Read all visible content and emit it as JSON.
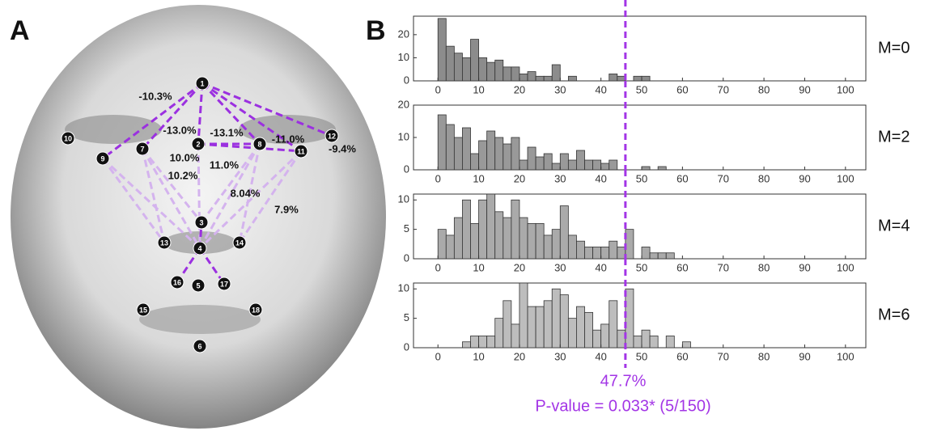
{
  "panel_a": {
    "label": "A",
    "landmarks": [
      "1",
      "2",
      "3",
      "4",
      "5",
      "6",
      "7",
      "8",
      "9",
      "10",
      "11",
      "12",
      "13",
      "14",
      "15",
      "16",
      "17",
      "18"
    ],
    "percent_labels": [
      "-10.3%",
      "-13.0%",
      "-13.1%",
      "-11.0%",
      "-9.4%",
      "10.0%",
      "11.0%",
      "10.2%",
      "8.04%",
      "7.9%"
    ]
  },
  "panel_b": {
    "label": "B",
    "annotation": {
      "percent": "47.7%",
      "p_value": "P-value = 0.033* (5/150)"
    },
    "annotation_color": "#a335e6"
  },
  "chart_data": [
    {
      "type": "histogram",
      "title": "M=0",
      "color": "#8c8c8c",
      "bins": [
        0,
        2,
        4,
        6,
        8,
        10,
        12,
        14,
        16,
        18,
        20,
        22,
        24,
        26,
        28,
        30,
        32,
        34,
        36,
        38,
        40,
        42,
        44,
        46,
        48,
        50,
        52,
        54,
        56,
        58,
        60,
        62,
        64
      ],
      "values": [
        27,
        15,
        12,
        10,
        18,
        10,
        8,
        9,
        6,
        6,
        3,
        4,
        2,
        2,
        7,
        0,
        2,
        0,
        0,
        0,
        0,
        3,
        2,
        0,
        2,
        2,
        0,
        0,
        0,
        0,
        0,
        0
      ],
      "xlim": [
        -6,
        105
      ],
      "xticks": [
        0,
        10,
        20,
        30,
        40,
        50,
        60,
        70,
        80,
        90,
        100
      ],
      "ylim": [
        0,
        28
      ],
      "yticks": [
        0,
        10,
        20
      ],
      "reference_line": 46,
      "reference_color": "#a335e6"
    },
    {
      "type": "histogram",
      "title": "M=2",
      "color": "#999999",
      "bins": [
        0,
        2,
        4,
        6,
        8,
        10,
        12,
        14,
        16,
        18,
        20,
        22,
        24,
        26,
        28,
        30,
        32,
        34,
        36,
        38,
        40,
        42,
        44,
        46,
        48,
        50,
        52,
        54,
        56,
        58,
        60,
        62,
        64
      ],
      "values": [
        17,
        14,
        10,
        13,
        5,
        9,
        12,
        10,
        8,
        10,
        3,
        7,
        4,
        5,
        2,
        5,
        3,
        6,
        3,
        3,
        2,
        3,
        0,
        0,
        0,
        1,
        0,
        1,
        0,
        0,
        0,
        0
      ],
      "xlim": [
        -6,
        105
      ],
      "xticks": [
        0,
        10,
        20,
        30,
        40,
        50,
        60,
        70,
        80,
        90,
        100
      ],
      "ylim": [
        0,
        20
      ],
      "yticks": [
        0,
        10,
        20
      ],
      "reference_line": 46,
      "reference_color": "#a335e6"
    },
    {
      "type": "histogram",
      "title": "M=4",
      "color": "#aaaaaa",
      "bins": [
        0,
        2,
        4,
        6,
        8,
        10,
        12,
        14,
        16,
        18,
        20,
        22,
        24,
        26,
        28,
        30,
        32,
        34,
        36,
        38,
        40,
        42,
        44,
        46,
        48,
        50,
        52,
        54,
        56,
        58,
        60,
        62,
        64
      ],
      "values": [
        5,
        4,
        7,
        10,
        6,
        10,
        11,
        8,
        7,
        10,
        7,
        6,
        6,
        4,
        5,
        9,
        4,
        3,
        2,
        2,
        2,
        3,
        2,
        5,
        0,
        2,
        1,
        1,
        1,
        0,
        0,
        0
      ],
      "xlim": [
        -6,
        105
      ],
      "xticks": [
        0,
        10,
        20,
        30,
        40,
        50,
        60,
        70,
        80,
        90,
        100
      ],
      "ylim": [
        0,
        11
      ],
      "yticks": [
        0,
        5,
        10
      ],
      "reference_line": 46,
      "reference_color": "#a335e6"
    },
    {
      "type": "histogram",
      "title": "M=6",
      "color": "#bdbdbd",
      "bins": [
        0,
        2,
        4,
        6,
        8,
        10,
        12,
        14,
        16,
        18,
        20,
        22,
        24,
        26,
        28,
        30,
        32,
        34,
        36,
        38,
        40,
        42,
        44,
        46,
        48,
        50,
        52,
        54,
        56,
        58,
        60,
        62,
        64
      ],
      "values": [
        0,
        0,
        0,
        1,
        2,
        2,
        2,
        5,
        8,
        4,
        11,
        7,
        7,
        8,
        10,
        9,
        5,
        7,
        6,
        3,
        4,
        8,
        3,
        10,
        2,
        3,
        2,
        0,
        2,
        0,
        1,
        0
      ],
      "xlim": [
        -6,
        105
      ],
      "xticks": [
        0,
        10,
        20,
        30,
        40,
        50,
        60,
        70,
        80,
        90,
        100
      ],
      "ylim": [
        0,
        11
      ],
      "yticks": [
        0,
        5,
        10
      ],
      "reference_line": 46,
      "reference_color": "#a335e6"
    }
  ]
}
